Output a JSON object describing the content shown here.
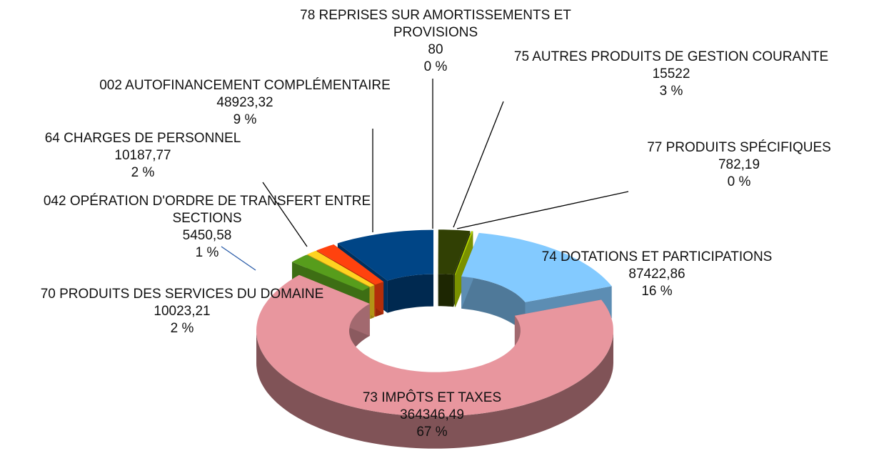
{
  "chart_data": {
    "type": "donut3d",
    "categories": [
      "78 REPRISES SUR AMORTISSEMENTS ET PROVISIONS",
      "75 AUTRES PRODUITS DE GESTION COURANTE",
      "77 PRODUITS SPÉCIFIQUES",
      "74 DOTATIONS ET PARTICIPATIONS",
      "73 IMPÔTS ET TAXES",
      "70 PRODUITS DES SERVICES DU DOMAINE",
      "042 OPÉRATION D'ORDRE DE TRANSFERT ENTRE SECTIONS",
      "64 CHARGES DE PERSONNEL",
      "002 AUTOFINANCEMENT COMPLÉMENTAIRE"
    ],
    "values": [
      80,
      15522,
      782.19,
      87422.86,
      364346.49,
      10023.21,
      5450.58,
      10187.77,
      48923.32
    ],
    "value_labels": [
      "80",
      "15522",
      "782,19",
      "87422,86",
      "364346,49",
      "10023,21",
      "5450,58",
      "10187,77",
      "48923,32"
    ],
    "percents": [
      0,
      3,
      0,
      16,
      67,
      2,
      1,
      2,
      9
    ],
    "percent_labels": [
      "0 %",
      "3 %",
      "0 %",
      "16 %",
      "67 %",
      "2 %",
      "1 %",
      "2 %",
      "9 %"
    ],
    "colors": [
      "#f2f0c8",
      "#314004",
      "#aecf00",
      "#83caff",
      "#e8969e",
      "#579d1c",
      "#ffd320",
      "#ff420e",
      "#004586"
    ]
  }
}
